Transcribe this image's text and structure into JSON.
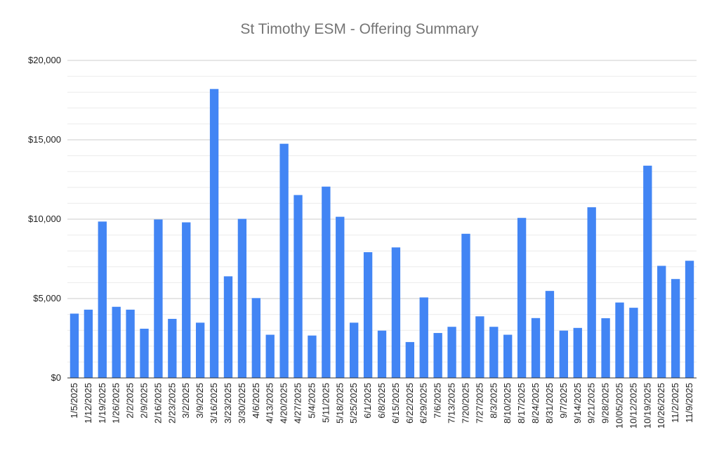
{
  "chart_data": {
    "type": "bar",
    "title": "St Timothy ESM - Offering Summary",
    "xlabel": "",
    "ylabel": "",
    "ylim": [
      0,
      20000
    ],
    "yticks": [
      "$0",
      "$5,000",
      "$10,000",
      "$15,000",
      "$20,000"
    ],
    "grid": true,
    "bar_color": "#4285F4",
    "categories": [
      "1/5/2025",
      "1/12/2025",
      "1/19/2025",
      "1/26/2025",
      "2/2/2025",
      "2/9/2025",
      "2/16/2025",
      "2/23/2025",
      "3/2/2025",
      "3/9/2025",
      "3/16/2025",
      "3/23/2025",
      "3/30/2025",
      "4/6/2025",
      "4/13/2025",
      "4/20/2025",
      "4/27/2025",
      "5/4/2025",
      "5/11/2025",
      "5/18/2025",
      "5/25/2025",
      "6/1/2025",
      "6/8/2025",
      "6/15/2025",
      "6/22/2025",
      "6/29/2025",
      "7/6/2025",
      "7/13/2025",
      "7/20/2025",
      "7/27/2025",
      "8/3/2025",
      "8/10/2025",
      "8/17/2025",
      "8/24/2025",
      "8/31/2025",
      "9/7/2025",
      "9/14/2025",
      "9/21/2025",
      "9/28/2025",
      "10/05/2025",
      "10/12/2025",
      "10/19/2025",
      "10/26/2025",
      "11/2/2025",
      "11/9/2025"
    ],
    "values": [
      4050,
      4300,
      9850,
      4480,
      4300,
      3100,
      9980,
      3720,
      9800,
      3480,
      18200,
      6400,
      10020,
      5030,
      2720,
      14750,
      11520,
      2670,
      12050,
      10150,
      3480,
      7920,
      2980,
      8220,
      2260,
      5070,
      2830,
      3220,
      9080,
      3880,
      3220,
      2720,
      10080,
      3770,
      5480,
      2980,
      3150,
      10750,
      3760,
      4750,
      4420,
      13370,
      7060,
      6230,
      7380
    ]
  }
}
